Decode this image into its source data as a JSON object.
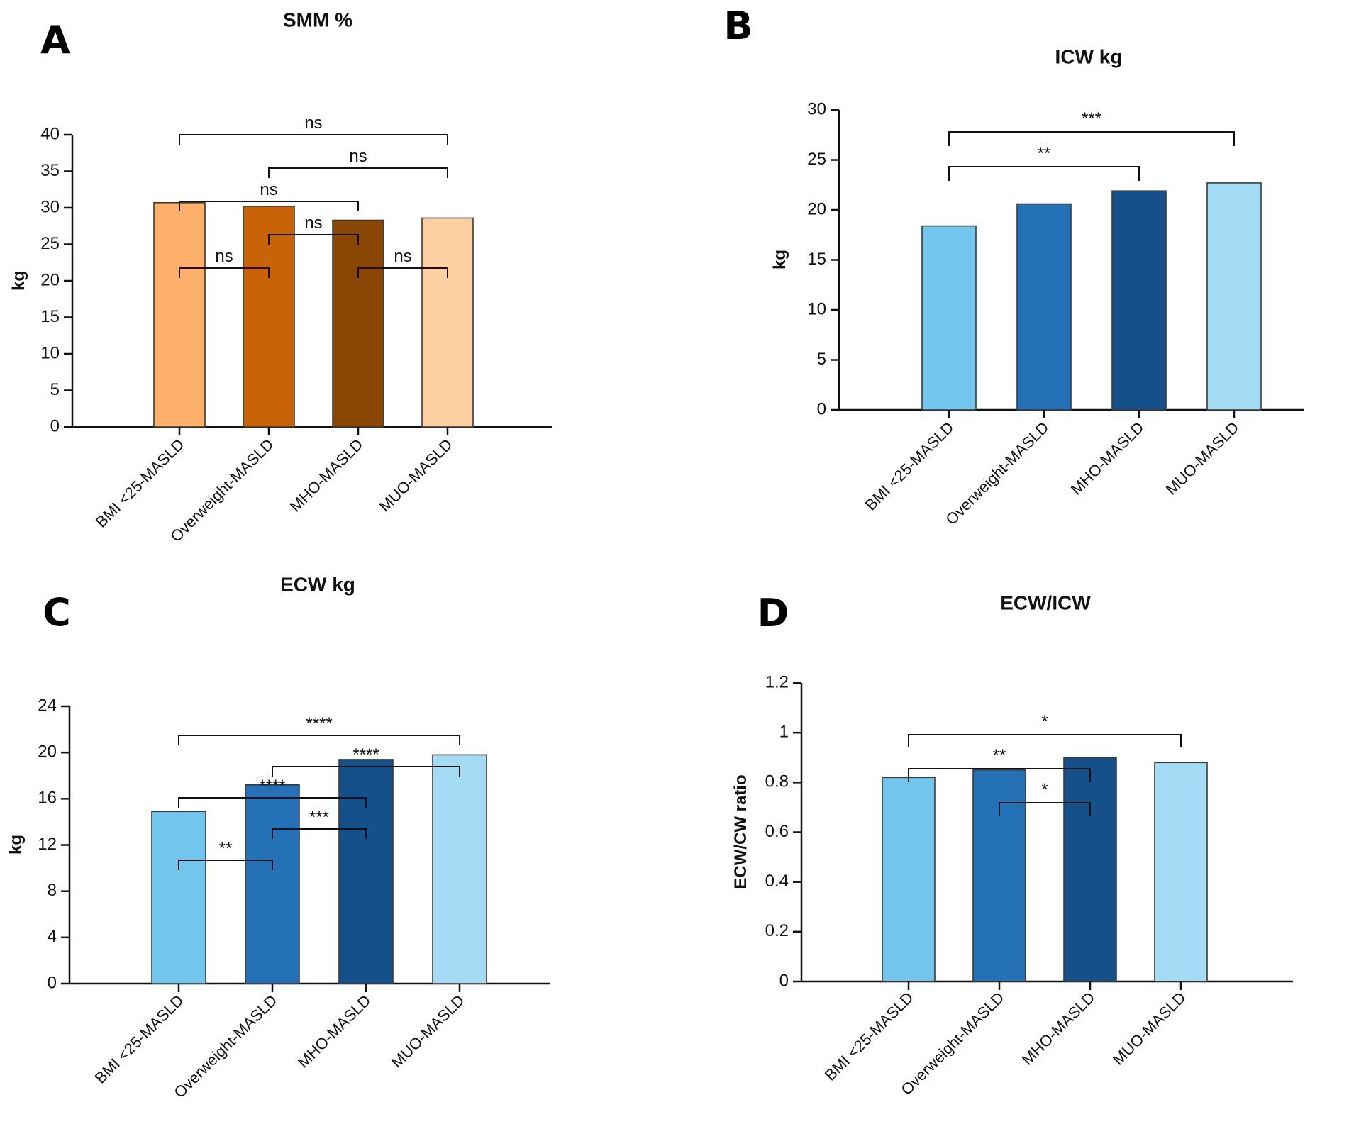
{
  "chart_data": [
    {
      "panel": "A",
      "type": "bar",
      "title": "SMM %",
      "ylabel": "kg",
      "xlabel": "",
      "categories": [
        "BMI <25-MASLD",
        "Overweight-MASLD",
        "MHO-MASLD",
        "MUO-MASLD"
      ],
      "values": [
        30.7,
        30.2,
        28.3,
        28.6
      ],
      "colors": [
        "#fdb06a",
        "#c86308",
        "#8a4604",
        "#fecfa0"
      ],
      "ylim": [
        0,
        40
      ],
      "yticks": [
        0,
        5,
        10,
        15,
        20,
        25,
        30,
        35,
        40
      ],
      "significance": [
        {
          "from": 0,
          "to": 1,
          "label": "ns"
        },
        {
          "from": 1,
          "to": 2,
          "label": "ns"
        },
        {
          "from": 2,
          "to": 3,
          "label": "ns"
        },
        {
          "from": 0,
          "to": 2,
          "label": "ns"
        },
        {
          "from": 1,
          "to": 3,
          "label": "ns"
        },
        {
          "from": 0,
          "to": 3,
          "label": "ns"
        }
      ]
    },
    {
      "panel": "B",
      "type": "bar",
      "title": "ICW kg",
      "ylabel": "kg",
      "xlabel": "",
      "categories": [
        "BMI <25-MASLD",
        "Overweight-MASLD",
        "MHO-MASLD",
        "MUO-MASLD"
      ],
      "values": [
        18.4,
        20.6,
        21.9,
        22.7
      ],
      "colors": [
        "#72c6ee",
        "#2571b7",
        "#15508a",
        "#a3dbf5"
      ],
      "ylim": [
        0,
        30
      ],
      "yticks": [
        0,
        5,
        10,
        15,
        20,
        25,
        30
      ],
      "significance": [
        {
          "from": 0,
          "to": 2,
          "label": "**"
        },
        {
          "from": 0,
          "to": 3,
          "label": "***"
        }
      ]
    },
    {
      "panel": "C",
      "type": "bar",
      "title": "ECW kg",
      "ylabel": "kg",
      "xlabel": "",
      "categories": [
        "BMI <25-MASLD",
        "Overweight-MASLD",
        "MHO-MASLD",
        "MUO-MASLD"
      ],
      "values": [
        14.9,
        17.2,
        19.4,
        19.8
      ],
      "colors": [
        "#72c6ee",
        "#2571b7",
        "#15508a",
        "#a3dbf5"
      ],
      "ylim": [
        0,
        24
      ],
      "yticks": [
        0,
        4,
        8,
        12,
        16,
        20,
        24
      ],
      "significance": [
        {
          "from": 0,
          "to": 1,
          "label": "**"
        },
        {
          "from": 1,
          "to": 2,
          "label": "***"
        },
        {
          "from": 0,
          "to": 2,
          "label": "****"
        },
        {
          "from": 1,
          "to": 3,
          "label": "****"
        },
        {
          "from": 0,
          "to": 3,
          "label": "****"
        }
      ]
    },
    {
      "panel": "D",
      "type": "bar",
      "title": "ECW/ICW",
      "ylabel": "ECW/CW ratio",
      "xlabel": "",
      "categories": [
        "BMI <25-MASLD",
        "Overweight-MASLD",
        "MHO-MASLD",
        "MUO-MASLD"
      ],
      "values": [
        0.82,
        0.85,
        0.9,
        0.88
      ],
      "colors": [
        "#72c6ee",
        "#2571b7",
        "#15508a",
        "#a3dbf5"
      ],
      "ylim": [
        0,
        1.2
      ],
      "yticks": [
        0,
        0.2,
        0.4,
        0.6,
        0.8,
        1,
        1.2
      ],
      "significance": [
        {
          "from": 1,
          "to": 2,
          "label": "*"
        },
        {
          "from": 0,
          "to": 2,
          "label": "**"
        },
        {
          "from": 0,
          "to": 3,
          "label": "*"
        }
      ]
    }
  ]
}
